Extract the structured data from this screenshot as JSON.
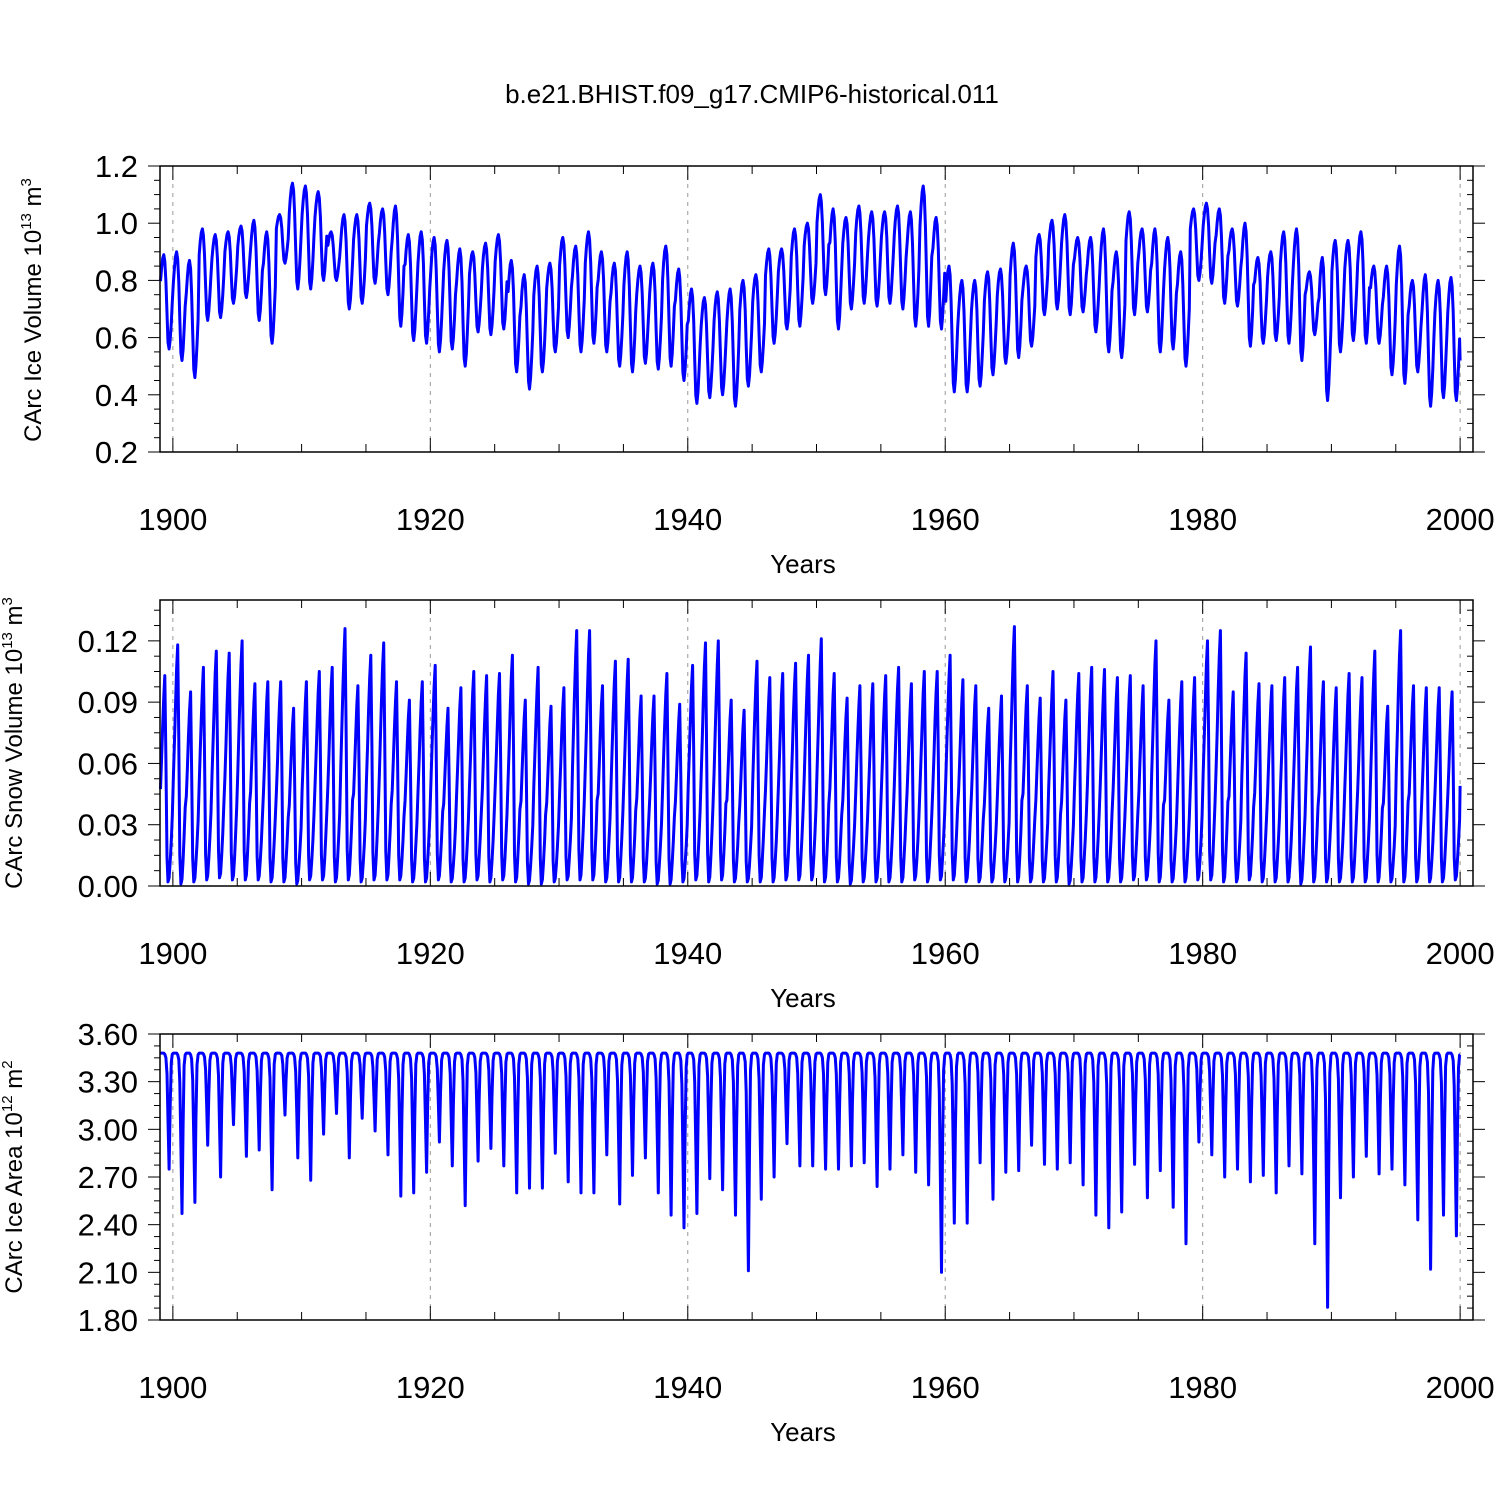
{
  "figure": {
    "title": "b.e21.BHIST.f09_g17.CMIP6-historical.011"
  },
  "style": {
    "line_color": "#0000ff",
    "axis_color": "#000000",
    "grid_color": "#999999"
  },
  "chart_data": [
    {
      "type": "line",
      "title": "",
      "xlabel": "Years",
      "ylabel": {
        "text": "CArc Ice Volume 10",
        "exp": "13",
        "unit": " m",
        "unit_exp": "3"
      },
      "xlim": [
        1899,
        2001
      ],
      "ylim": [
        0.2,
        1.2
      ],
      "xticks": [
        1900,
        1920,
        1940,
        1960,
        1980,
        2000
      ],
      "xtick_labels": [
        "1900",
        "1920",
        "1940",
        "1960",
        "1980",
        "2000"
      ],
      "yticks": [
        0.2,
        0.4,
        0.6,
        0.8,
        1.0,
        1.2
      ],
      "ytick_labels": [
        "0.2",
        "0.4",
        "0.6",
        "0.8",
        "1.0",
        "1.2"
      ],
      "grid": "vertical dashed at labeled x ticks",
      "series": [
        {
          "sampling": "monthly, seasonal cycle between annual min (Sep) and annual max (Apr)",
          "years": [
            1899,
            1900,
            1901,
            1902,
            1903,
            1904,
            1905,
            1906,
            1907,
            1908,
            1909,
            1910,
            1911,
            1912,
            1913,
            1914,
            1915,
            1916,
            1917,
            1918,
            1919,
            1920,
            1921,
            1922,
            1923,
            1924,
            1925,
            1926,
            1927,
            1928,
            1929,
            1930,
            1931,
            1932,
            1933,
            1934,
            1935,
            1936,
            1937,
            1938,
            1939,
            1940,
            1941,
            1942,
            1943,
            1944,
            1945,
            1946,
            1947,
            1948,
            1949,
            1950,
            1951,
            1952,
            1953,
            1954,
            1955,
            1956,
            1957,
            1958,
            1959,
            1960,
            1961,
            1962,
            1963,
            1964,
            1965,
            1966,
            1967,
            1968,
            1969,
            1970,
            1971,
            1972,
            1973,
            1974,
            1975,
            1976,
            1977,
            1978,
            1979,
            1980,
            1981,
            1982,
            1983,
            1984,
            1985,
            1986,
            1987,
            1988,
            1989,
            1990,
            1991,
            1992,
            1993,
            1994,
            1995,
            1996,
            1997,
            1998,
            1999
          ],
          "annual_max": [
            0.89,
            0.9,
            0.87,
            0.98,
            0.96,
            0.97,
            0.99,
            1.01,
            0.97,
            1.03,
            1.14,
            1.13,
            1.11,
            0.97,
            1.03,
            1.03,
            1.07,
            1.05,
            1.06,
            0.96,
            0.97,
            0.95,
            0.94,
            0.91,
            0.9,
            0.93,
            0.96,
            0.87,
            0.82,
            0.85,
            0.86,
            0.95,
            0.92,
            0.97,
            0.9,
            0.86,
            0.9,
            0.85,
            0.86,
            0.92,
            0.84,
            0.77,
            0.74,
            0.76,
            0.77,
            0.8,
            0.82,
            0.91,
            0.91,
            0.98,
            1.0,
            1.1,
            1.05,
            1.02,
            1.06,
            1.04,
            1.04,
            1.06,
            1.04,
            1.13,
            1.02,
            0.85,
            0.8,
            0.8,
            0.83,
            0.84,
            0.93,
            0.85,
            0.96,
            1.01,
            1.03,
            0.95,
            0.95,
            0.98,
            0.9,
            1.04,
            0.98,
            0.98,
            0.95,
            0.9,
            1.05,
            1.07,
            1.05,
            0.98,
            1.0,
            0.88,
            0.9,
            0.97,
            0.98,
            0.83,
            0.88,
            0.94,
            0.94,
            0.97,
            0.85,
            0.85,
            0.92,
            0.8,
            0.82,
            0.8,
            0.81
          ],
          "annual_min": [
            0.56,
            0.52,
            0.46,
            0.66,
            0.67,
            0.72,
            0.74,
            0.66,
            0.58,
            0.86,
            0.77,
            0.77,
            0.8,
            0.8,
            0.7,
            0.72,
            0.79,
            0.75,
            0.64,
            0.59,
            0.58,
            0.55,
            0.56,
            0.5,
            0.62,
            0.61,
            0.63,
            0.48,
            0.42,
            0.48,
            0.55,
            0.6,
            0.55,
            0.58,
            0.55,
            0.5,
            0.48,
            0.51,
            0.49,
            0.5,
            0.45,
            0.37,
            0.39,
            0.4,
            0.36,
            0.43,
            0.48,
            0.58,
            0.63,
            0.64,
            0.72,
            0.75,
            0.63,
            0.7,
            0.72,
            0.71,
            0.72,
            0.7,
            0.64,
            0.64,
            0.63,
            0.41,
            0.41,
            0.43,
            0.47,
            0.51,
            0.53,
            0.57,
            0.68,
            0.7,
            0.68,
            0.69,
            0.62,
            0.55,
            0.53,
            0.68,
            0.69,
            0.55,
            0.56,
            0.5,
            0.8,
            0.79,
            0.72,
            0.71,
            0.57,
            0.58,
            0.59,
            0.58,
            0.52,
            0.61,
            0.38,
            0.55,
            0.59,
            0.58,
            0.58,
            0.47,
            0.44,
            0.48,
            0.36,
            0.39,
            0.38
          ],
          "end_value": 0.52
        }
      ]
    },
    {
      "type": "line",
      "title": "",
      "xlabel": "Years",
      "ylabel": {
        "text": "CArc Snow Volume 10",
        "exp": "13",
        "unit": " m",
        "unit_exp": "3"
      },
      "xlim": [
        1899,
        2001
      ],
      "ylim": [
        0.0,
        0.14
      ],
      "xticks": [
        1900,
        1920,
        1940,
        1960,
        1980,
        2000
      ],
      "xtick_labels": [
        "1900",
        "1920",
        "1940",
        "1960",
        "1980",
        "2000"
      ],
      "yticks": [
        0.0,
        0.03,
        0.06,
        0.09,
        0.12
      ],
      "ytick_labels": [
        "0.00",
        "0.03",
        "0.06",
        "0.09",
        "0.12"
      ],
      "grid": "vertical dashed at labeled x ticks",
      "series": [
        {
          "sampling": "monthly, seasonal cycle between annual min (Aug) and annual max (May)",
          "years": [
            1899,
            1900,
            1901,
            1902,
            1903,
            1904,
            1905,
            1906,
            1907,
            1908,
            1909,
            1910,
            1911,
            1912,
            1913,
            1914,
            1915,
            1916,
            1917,
            1918,
            1919,
            1920,
            1921,
            1922,
            1923,
            1924,
            1925,
            1926,
            1927,
            1928,
            1929,
            1930,
            1931,
            1932,
            1933,
            1934,
            1935,
            1936,
            1937,
            1938,
            1939,
            1940,
            1941,
            1942,
            1943,
            1944,
            1945,
            1946,
            1947,
            1948,
            1949,
            1950,
            1951,
            1952,
            1953,
            1954,
            1955,
            1956,
            1957,
            1958,
            1959,
            1960,
            1961,
            1962,
            1963,
            1964,
            1965,
            1966,
            1967,
            1968,
            1969,
            1970,
            1971,
            1972,
            1973,
            1974,
            1975,
            1976,
            1977,
            1978,
            1979,
            1980,
            1981,
            1982,
            1983,
            1984,
            1985,
            1986,
            1987,
            1988,
            1989,
            1990,
            1991,
            1992,
            1993,
            1994,
            1995,
            1996,
            1997,
            1998,
            1999
          ],
          "annual_max": [
            0.103,
            0.118,
            0.095,
            0.107,
            0.115,
            0.114,
            0.12,
            0.099,
            0.1,
            0.1,
            0.087,
            0.1,
            0.105,
            0.107,
            0.126,
            0.098,
            0.113,
            0.119,
            0.1,
            0.091,
            0.1,
            0.108,
            0.087,
            0.097,
            0.105,
            0.103,
            0.104,
            0.113,
            0.091,
            0.107,
            0.088,
            0.097,
            0.125,
            0.125,
            0.098,
            0.11,
            0.111,
            0.093,
            0.093,
            0.104,
            0.089,
            0.108,
            0.119,
            0.12,
            0.091,
            0.086,
            0.11,
            0.102,
            0.104,
            0.109,
            0.113,
            0.121,
            0.104,
            0.092,
            0.098,
            0.099,
            0.103,
            0.107,
            0.099,
            0.105,
            0.105,
            0.113,
            0.101,
            0.098,
            0.087,
            0.093,
            0.127,
            0.098,
            0.092,
            0.105,
            0.091,
            0.104,
            0.107,
            0.106,
            0.102,
            0.103,
            0.098,
            0.12,
            0.091,
            0.1,
            0.102,
            0.12,
            0.125,
            0.095,
            0.114,
            0.099,
            0.098,
            0.102,
            0.107,
            0.117,
            0.1,
            0.097,
            0.104,
            0.102,
            0.115,
            0.088,
            0.125,
            0.098,
            0.097,
            0.097,
            0.095
          ],
          "annual_min": [
            0.002,
            0.001,
            0.002,
            0.003,
            0.004,
            0.003,
            0.003,
            0.003,
            0.002,
            0.002,
            0.001,
            0.003,
            0.003,
            0.002,
            0.003,
            0.002,
            0.003,
            0.003,
            0.003,
            0.002,
            0.002,
            0.003,
            0.002,
            0.002,
            0.003,
            0.002,
            0.003,
            0.002,
            0.001,
            0.001,
            0.002,
            0.003,
            0.003,
            0.003,
            0.002,
            0.002,
            0.002,
            0.002,
            0.001,
            0.001,
            0.002,
            0.003,
            0.002,
            0.003,
            0.002,
            0.002,
            0.002,
            0.002,
            0.003,
            0.003,
            0.003,
            0.002,
            0.002,
            0.001,
            0.002,
            0.002,
            0.002,
            0.002,
            0.003,
            0.002,
            0.003,
            0.003,
            0.002,
            0.002,
            0.002,
            0.002,
            0.002,
            0.002,
            0.002,
            0.002,
            0.001,
            0.002,
            0.002,
            0.002,
            0.002,
            0.003,
            0.003,
            0.002,
            0.002,
            0.002,
            0.003,
            0.003,
            0.002,
            0.002,
            0.003,
            0.002,
            0.002,
            0.002,
            0.001,
            0.002,
            0.002,
            0.002,
            0.002,
            0.002,
            0.002,
            0.002,
            0.002,
            0.002,
            0.002,
            0.002,
            0.003
          ],
          "end_value": 0.049
        }
      ]
    },
    {
      "type": "line",
      "title": "",
      "xlabel": "Years",
      "ylabel": {
        "text": "CArc Ice Area 10",
        "exp": "12",
        "unit": " m",
        "unit_exp": "2"
      },
      "xlim": [
        1899,
        2001
      ],
      "ylim": [
        1.8,
        3.6
      ],
      "xticks": [
        1900,
        1920,
        1940,
        1960,
        1980,
        2000
      ],
      "xtick_labels": [
        "1900",
        "1920",
        "1940",
        "1960",
        "1980",
        "2000"
      ],
      "yticks": [
        1.8,
        2.1,
        2.4,
        2.7,
        3.0,
        3.3,
        3.6
      ],
      "ytick_labels": [
        "1.80",
        "2.10",
        "2.40",
        "2.70",
        "3.00",
        "3.30",
        "3.60"
      ],
      "grid": "vertical dashed at labeled x ticks",
      "series": [
        {
          "sampling": "monthly, near-constant winter plateau with a sharp September minimum",
          "years": [
            1899,
            1900,
            1901,
            1902,
            1903,
            1904,
            1905,
            1906,
            1907,
            1908,
            1909,
            1910,
            1911,
            1912,
            1913,
            1914,
            1915,
            1916,
            1917,
            1918,
            1919,
            1920,
            1921,
            1922,
            1923,
            1924,
            1925,
            1926,
            1927,
            1928,
            1929,
            1930,
            1931,
            1932,
            1933,
            1934,
            1935,
            1936,
            1937,
            1938,
            1939,
            1940,
            1941,
            1942,
            1943,
            1944,
            1945,
            1946,
            1947,
            1948,
            1949,
            1950,
            1951,
            1952,
            1953,
            1954,
            1955,
            1956,
            1957,
            1958,
            1959,
            1960,
            1961,
            1962,
            1963,
            1964,
            1965,
            1966,
            1967,
            1968,
            1969,
            1970,
            1971,
            1972,
            1973,
            1974,
            1975,
            1976,
            1977,
            1978,
            1979,
            1980,
            1981,
            1982,
            1983,
            1984,
            1985,
            1986,
            1987,
            1988,
            1989,
            1990,
            1991,
            1992,
            1993,
            1994,
            1995,
            1996,
            1997,
            1998,
            1999
          ],
          "annual_max": 3.48,
          "annual_min": [
            2.75,
            2.47,
            2.54,
            2.9,
            2.7,
            3.03,
            2.83,
            2.87,
            2.62,
            3.09,
            2.82,
            2.68,
            2.97,
            3.1,
            2.82,
            3.07,
            2.99,
            2.84,
            2.58,
            2.6,
            2.73,
            2.92,
            2.77,
            2.52,
            2.8,
            2.88,
            2.77,
            2.6,
            2.63,
            2.63,
            2.85,
            2.67,
            2.6,
            2.6,
            2.84,
            2.53,
            2.71,
            2.82,
            2.6,
            2.46,
            2.38,
            2.47,
            2.69,
            2.62,
            2.46,
            2.11,
            2.56,
            2.7,
            2.91,
            2.77,
            2.77,
            2.75,
            2.75,
            2.77,
            2.79,
            2.64,
            2.75,
            2.84,
            2.73,
            2.65,
            2.1,
            2.41,
            2.41,
            2.79,
            2.56,
            2.73,
            2.74,
            2.9,
            2.78,
            2.75,
            2.79,
            2.65,
            2.46,
            2.38,
            2.48,
            2.78,
            2.57,
            2.74,
            2.51,
            2.28,
            2.92,
            2.84,
            2.7,
            2.75,
            2.67,
            2.71,
            2.6,
            2.77,
            2.72,
            2.28,
            1.88,
            2.57,
            2.7,
            2.83,
            2.72,
            2.75,
            2.65,
            2.43,
            2.12,
            2.46,
            2.33
          ],
          "end_value": 3.47
        }
      ]
    }
  ]
}
